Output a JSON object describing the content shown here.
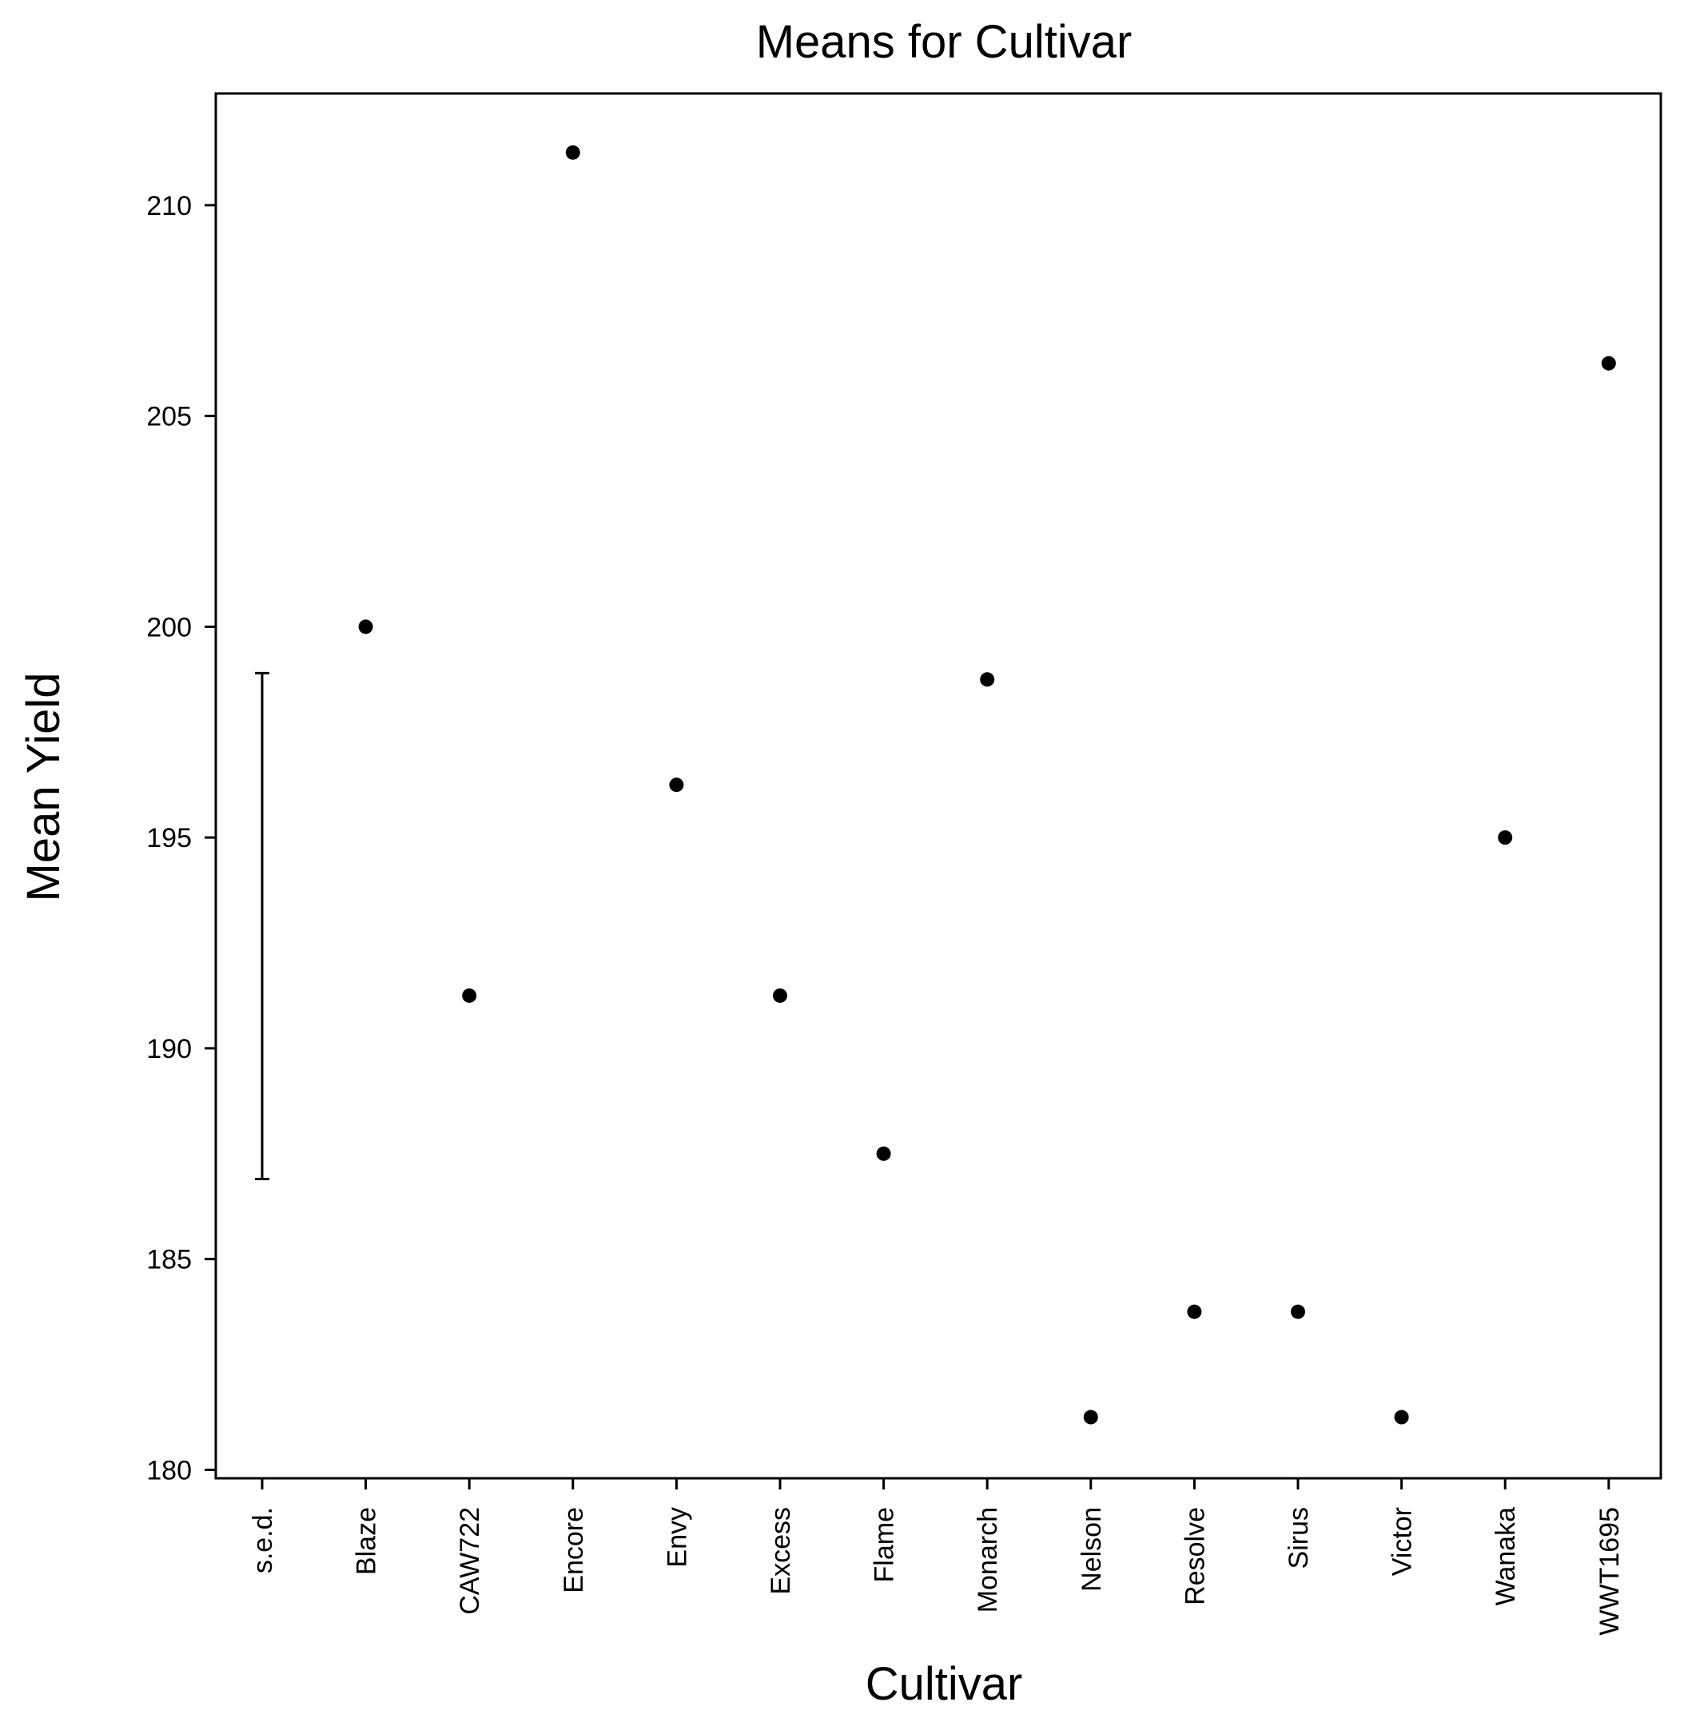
{
  "chart_data": {
    "type": "scatter",
    "title": "Means for Cultivar",
    "xlabel": "Cultivar",
    "ylabel": "Mean Yield",
    "categories": [
      "s.e.d.",
      "Blaze",
      "CAW722",
      "Encore",
      "Envy",
      "Excess",
      "Flame",
      "Monarch",
      "Nelson",
      "Resolve",
      "Sirus",
      "Victor",
      "Wanaka",
      "WWT1695"
    ],
    "points": [
      {
        "category": "Blaze",
        "value": 200.0
      },
      {
        "category": "CAW722",
        "value": 191.25
      },
      {
        "category": "Encore",
        "value": 211.25
      },
      {
        "category": "Envy",
        "value": 196.25
      },
      {
        "category": "Excess",
        "value": 191.25
      },
      {
        "category": "Flame",
        "value": 187.5
      },
      {
        "category": "Monarch",
        "value": 198.75
      },
      {
        "category": "Nelson",
        "value": 181.25
      },
      {
        "category": "Resolve",
        "value": 183.75
      },
      {
        "category": "Sirus",
        "value": 183.75
      },
      {
        "category": "Victor",
        "value": 181.25
      },
      {
        "category": "Wanaka",
        "value": 195.0
      },
      {
        "category": "WWT1695",
        "value": 206.25
      }
    ],
    "sed_bar": {
      "category": "s.e.d.",
      "low": 186.9,
      "high": 198.9
    },
    "yticks": [
      180,
      185,
      190,
      195,
      200,
      205,
      210
    ],
    "ylim": [
      179.8,
      212.65
    ],
    "grid": false,
    "colors": {
      "marker": "#000000",
      "axis": "#000000"
    }
  }
}
